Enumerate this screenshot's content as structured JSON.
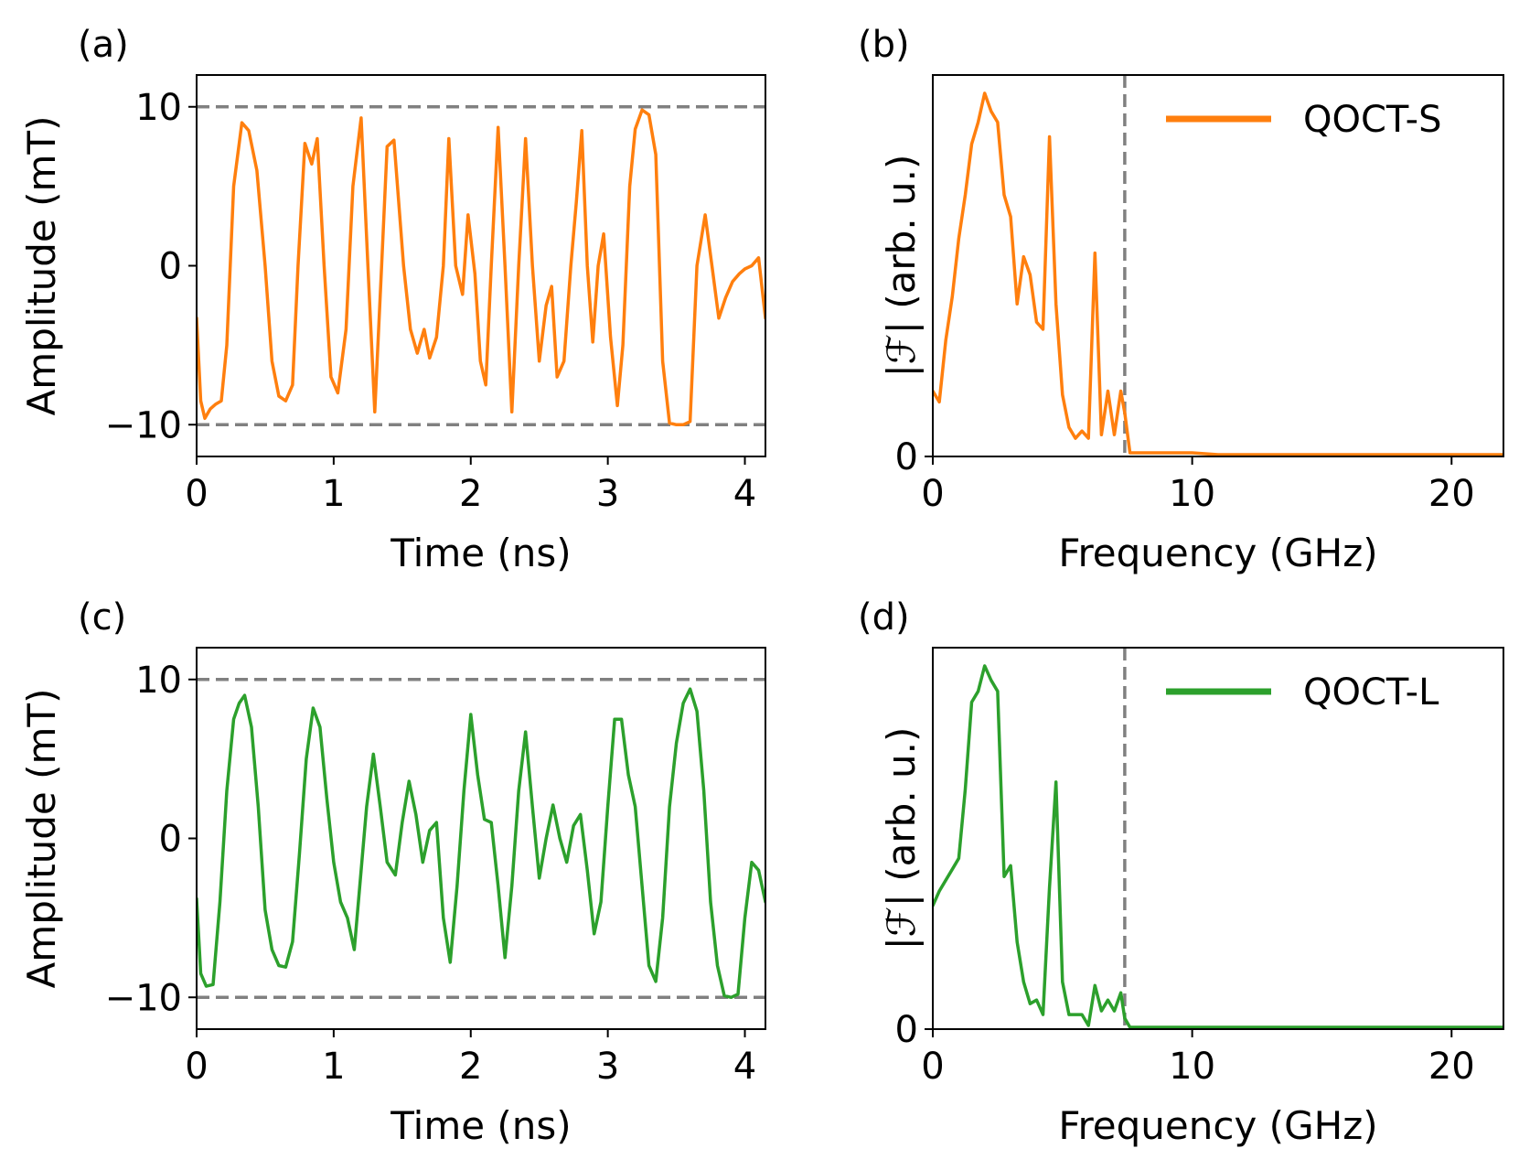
{
  "colors": {
    "qoct_s": "#ff7f0e",
    "qoct_l": "#2ca02c",
    "limit_line": "#808080",
    "axes": "#000000"
  },
  "chart_data": [
    {
      "id": "a",
      "panel_label": "(a)",
      "type": "line",
      "xlabel": "Time (ns)",
      "ylabel": "Amplitude (mT)",
      "xlim": [
        0,
        4.15
      ],
      "ylim": [
        -12,
        12
      ],
      "xticks": [
        0,
        1,
        2,
        3,
        4
      ],
      "xtick_labels": [
        "0",
        "1",
        "2",
        "3",
        "4"
      ],
      "yticks": [
        -10,
        0,
        10
      ],
      "ytick_labels": [
        "−10",
        "0",
        "10"
      ],
      "hlines": [
        10,
        -10
      ],
      "vlines": [],
      "legend": null,
      "color_key": "qoct_s",
      "series": [
        {
          "name": "QOCT-S",
          "x": [
            0,
            0.03,
            0.06,
            0.1,
            0.14,
            0.18,
            0.22,
            0.27,
            0.33,
            0.38,
            0.44,
            0.5,
            0.55,
            0.6,
            0.65,
            0.7,
            0.74,
            0.79,
            0.84,
            0.88,
            0.93,
            0.98,
            1.03,
            1.09,
            1.14,
            1.2,
            1.25,
            1.3,
            1.35,
            1.39,
            1.44,
            1.51,
            1.56,
            1.61,
            1.66,
            1.7,
            1.75,
            1.8,
            1.84,
            1.89,
            1.94,
            1.98,
            2.03,
            2.07,
            2.11,
            2.15,
            2.2,
            2.25,
            2.3,
            2.35,
            2.4,
            2.45,
            2.5,
            2.55,
            2.59,
            2.63,
            2.68,
            2.73,
            2.77,
            2.81,
            2.85,
            2.89,
            2.93,
            2.97,
            3.02,
            3.07,
            3.11,
            3.16,
            3.2,
            3.25,
            3.3,
            3.35,
            3.4,
            3.45,
            3.5,
            3.55,
            3.6,
            3.65,
            3.71,
            3.76,
            3.81,
            3.86,
            3.91,
            3.96,
            4.0,
            4.05,
            4.1,
            4.15
          ],
          "y": [
            -3.3,
            -8.5,
            -9.6,
            -9.0,
            -8.7,
            -8.5,
            -5.0,
            5.0,
            9.0,
            8.5,
            6.0,
            0.0,
            -6.0,
            -8.2,
            -8.5,
            -7.5,
            0.0,
            7.7,
            6.4,
            8.0,
            0.0,
            -7.0,
            -8.0,
            -4.0,
            5.0,
            9.3,
            0.0,
            -9.2,
            0.0,
            7.5,
            7.9,
            0.0,
            -4.0,
            -5.5,
            -4.0,
            -5.8,
            -4.5,
            0.0,
            8.0,
            0.0,
            -1.8,
            3.2,
            -0.5,
            -6.0,
            -7.5,
            0.0,
            8.7,
            0.0,
            -9.2,
            0.0,
            8.0,
            0.0,
            -6.0,
            -2.5,
            -1.3,
            -7.0,
            -6.0,
            0.0,
            4.0,
            8.5,
            0.0,
            -4.8,
            0.0,
            2.0,
            -4.5,
            -8.8,
            -5.0,
            5.0,
            8.6,
            9.8,
            9.5,
            7.0,
            -6.0,
            -9.9,
            -10.0,
            -10.0,
            -9.8,
            0.0,
            3.2,
            0.0,
            -3.3,
            -2.0,
            -1.0,
            -0.5,
            -0.2,
            0.0,
            0.5,
            -3.3
          ]
        }
      ]
    },
    {
      "id": "b",
      "panel_label": "(b)",
      "type": "line",
      "xlabel": "Frequency (GHz)",
      "ylabel": "|ℱ| (arb. u.)",
      "xlim": [
        0,
        22
      ],
      "ylim": [
        0,
        1.05
      ],
      "xticks": [
        0,
        10,
        20
      ],
      "xtick_labels": [
        "0",
        "10",
        "20"
      ],
      "yticks": [
        0
      ],
      "ytick_labels": [
        "0"
      ],
      "hlines": [],
      "vlines": [
        7.4
      ],
      "legend": {
        "label": "QOCT-S",
        "placement": "top-right"
      },
      "color_key": "qoct_s",
      "series": [
        {
          "name": "QOCT-S",
          "x": [
            0,
            0.25,
            0.5,
            0.75,
            1.0,
            1.25,
            1.5,
            1.75,
            2.0,
            2.25,
            2.5,
            2.75,
            3.0,
            3.25,
            3.5,
            3.75,
            4.0,
            4.25,
            4.5,
            4.75,
            5.0,
            5.25,
            5.5,
            5.75,
            6.0,
            6.25,
            6.5,
            6.75,
            7.0,
            7.25,
            7.4,
            7.6,
            8.0,
            9.0,
            10.0,
            11.0,
            12.0,
            13.0,
            14.0,
            15.0,
            16.0,
            17.0,
            18.0,
            19.0,
            20.0,
            21.0,
            22.0
          ],
          "y": [
            0.18,
            0.15,
            0.32,
            0.44,
            0.6,
            0.72,
            0.86,
            0.92,
            1.0,
            0.95,
            0.92,
            0.72,
            0.66,
            0.42,
            0.55,
            0.5,
            0.37,
            0.35,
            0.88,
            0.42,
            0.17,
            0.08,
            0.05,
            0.07,
            0.05,
            0.56,
            0.06,
            0.18,
            0.06,
            0.18,
            0.12,
            0.01,
            0.01,
            0.01,
            0.01,
            0.005,
            0.005,
            0.005,
            0.005,
            0.005,
            0.005,
            0.005,
            0.005,
            0.005,
            0.005,
            0.005,
            0.005
          ]
        }
      ]
    },
    {
      "id": "c",
      "panel_label": "(c)",
      "type": "line",
      "xlabel": "Time (ns)",
      "ylabel": "Amplitude (mT)",
      "xlim": [
        0,
        4.15
      ],
      "ylim": [
        -12,
        12
      ],
      "xticks": [
        0,
        1,
        2,
        3,
        4
      ],
      "xtick_labels": [
        "0",
        "1",
        "2",
        "3",
        "4"
      ],
      "yticks": [
        -10,
        0,
        10
      ],
      "ytick_labels": [
        "−10",
        "0",
        "10"
      ],
      "hlines": [
        10,
        -10
      ],
      "vlines": [],
      "legend": null,
      "color_key": "qoct_l",
      "series": [
        {
          "name": "QOCT-L",
          "x": [
            0,
            0.03,
            0.07,
            0.12,
            0.17,
            0.22,
            0.27,
            0.31,
            0.35,
            0.4,
            0.45,
            0.5,
            0.55,
            0.6,
            0.65,
            0.7,
            0.75,
            0.8,
            0.85,
            0.9,
            0.95,
            1.0,
            1.05,
            1.1,
            1.15,
            1.2,
            1.24,
            1.29,
            1.34,
            1.39,
            1.45,
            1.5,
            1.55,
            1.6,
            1.65,
            1.7,
            1.75,
            1.8,
            1.85,
            1.9,
            1.95,
            2.0,
            2.05,
            2.1,
            2.15,
            2.2,
            2.25,
            2.3,
            2.35,
            2.4,
            2.45,
            2.5,
            2.55,
            2.6,
            2.65,
            2.7,
            2.75,
            2.8,
            2.85,
            2.9,
            2.95,
            3.0,
            3.05,
            3.1,
            3.15,
            3.2,
            3.25,
            3.3,
            3.35,
            3.4,
            3.45,
            3.5,
            3.55,
            3.6,
            3.65,
            3.7,
            3.75,
            3.8,
            3.85,
            3.9,
            3.95,
            4.0,
            4.05,
            4.1,
            4.15
          ],
          "y": [
            -3.8,
            -8.5,
            -9.3,
            -9.2,
            -4.0,
            3.0,
            7.5,
            8.5,
            9.0,
            7.0,
            2.0,
            -4.5,
            -7.0,
            -8.0,
            -8.1,
            -6.5,
            -1.0,
            5.0,
            8.2,
            7.0,
            2.5,
            -1.5,
            -4.0,
            -5.0,
            -7.0,
            -2.0,
            2.0,
            5.3,
            2.0,
            -1.5,
            -2.3,
            1.0,
            3.6,
            1.5,
            -1.5,
            0.5,
            1.0,
            -5.0,
            -7.8,
            -3.0,
            3.0,
            7.8,
            4.0,
            1.2,
            1.0,
            -3.0,
            -7.5,
            -3.0,
            3.0,
            6.7,
            2.0,
            -2.5,
            0.0,
            2.1,
            0.0,
            -1.5,
            0.8,
            1.5,
            -2.0,
            -6.0,
            -4.0,
            2.0,
            7.5,
            7.5,
            4.0,
            2.0,
            -3.0,
            -8.0,
            -9.0,
            -5.0,
            2.0,
            6.0,
            8.5,
            9.4,
            8.0,
            3.0,
            -4.0,
            -8.0,
            -9.9,
            -10.0,
            -9.8,
            -5.0,
            -1.5,
            -2.0,
            -4.0
          ]
        }
      ]
    },
    {
      "id": "d",
      "panel_label": "(d)",
      "type": "line",
      "xlabel": "Frequency (GHz)",
      "ylabel": "|ℱ| (arb. u.)",
      "xlim": [
        0,
        22
      ],
      "ylim": [
        0,
        1.05
      ],
      "xticks": [
        0,
        10,
        20
      ],
      "xtick_labels": [
        "0",
        "10",
        "20"
      ],
      "yticks": [
        0
      ],
      "ytick_labels": [
        "0"
      ],
      "hlines": [],
      "vlines": [
        7.4
      ],
      "legend": {
        "label": "QOCT-L",
        "placement": "top-right"
      },
      "color_key": "qoct_l",
      "series": [
        {
          "name": "QOCT-L",
          "x": [
            0,
            0.25,
            0.5,
            0.75,
            1.0,
            1.25,
            1.5,
            1.75,
            2.0,
            2.25,
            2.5,
            2.75,
            3.0,
            3.25,
            3.5,
            3.75,
            4.0,
            4.25,
            4.5,
            4.75,
            5.0,
            5.25,
            5.5,
            5.75,
            6.0,
            6.25,
            6.5,
            6.75,
            7.0,
            7.25,
            7.4,
            7.6,
            8.0,
            9.0,
            10.0,
            11.0,
            12.0,
            13.0,
            14.0,
            15.0,
            16.0,
            17.0,
            18.0,
            19.0,
            20.0,
            21.0,
            22.0
          ],
          "y": [
            0.34,
            0.38,
            0.41,
            0.44,
            0.47,
            0.66,
            0.9,
            0.93,
            1.0,
            0.96,
            0.93,
            0.42,
            0.45,
            0.24,
            0.13,
            0.07,
            0.08,
            0.04,
            0.39,
            0.68,
            0.13,
            0.04,
            0.04,
            0.04,
            0.01,
            0.12,
            0.05,
            0.08,
            0.05,
            0.1,
            0.03,
            0.005,
            0.005,
            0.005,
            0.005,
            0.005,
            0.005,
            0.005,
            0.005,
            0.005,
            0.005,
            0.005,
            0.005,
            0.005,
            0.005,
            0.005,
            0.005
          ]
        }
      ]
    }
  ]
}
